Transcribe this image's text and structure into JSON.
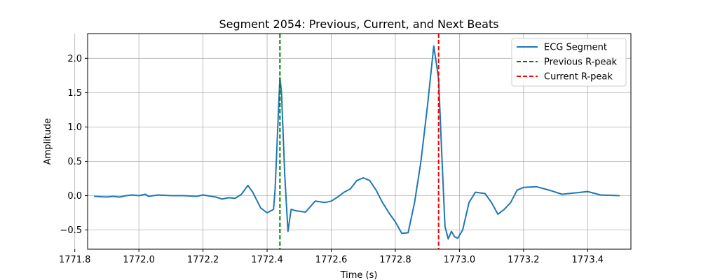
{
  "chart_data": {
    "type": "line",
    "title": "Segment 2054: Previous, Current, and Next Beats",
    "xlabel": "Time (s)",
    "ylabel": "Amplitude",
    "xlim": [
      1771.84,
      1773.535
    ],
    "ylim": [
      -0.78,
      2.36
    ],
    "xticks": [
      1771.8,
      1772.0,
      1772.2,
      1772.4,
      1772.6,
      1772.8,
      1773.0,
      1773.2,
      1773.4
    ],
    "xtick_labels": [
      "1771.8",
      "1772.0",
      "1772.2",
      "1772.4",
      "1772.6",
      "1772.8",
      "1773.0",
      "1773.2",
      "1773.4"
    ],
    "yticks": [
      -0.5,
      0.0,
      0.5,
      1.0,
      1.5,
      2.0
    ],
    "ytick_labels": [
      "−0.5",
      "0.0",
      "0.5",
      "1.0",
      "1.5",
      "2.0"
    ],
    "grid": true,
    "legend_position": "top-right",
    "series": [
      {
        "name": "ECG Segment",
        "color": "#1f77b4",
        "style": "solid",
        "x": [
          1771.86,
          1771.9,
          1771.92,
          1771.94,
          1771.96,
          1771.98,
          1772.0,
          1772.02,
          1772.03,
          1772.06,
          1772.1,
          1772.14,
          1772.18,
          1772.2,
          1772.24,
          1772.26,
          1772.28,
          1772.3,
          1772.32,
          1772.34,
          1772.355,
          1772.38,
          1772.4,
          1772.42,
          1772.425,
          1772.435,
          1772.44,
          1772.445,
          1772.455,
          1772.465,
          1772.475,
          1772.49,
          1772.52,
          1772.55,
          1772.58,
          1772.6,
          1772.62,
          1772.64,
          1772.66,
          1772.68,
          1772.7,
          1772.72,
          1772.74,
          1772.76,
          1772.78,
          1772.8,
          1772.82,
          1772.84,
          1772.86,
          1772.88,
          1772.9,
          1772.92,
          1772.935,
          1772.945,
          1772.955,
          1772.965,
          1772.975,
          1772.985,
          1772.995,
          1773.01,
          1773.03,
          1773.05,
          1773.08,
          1773.1,
          1773.12,
          1773.14,
          1773.16,
          1773.18,
          1773.2,
          1773.24,
          1773.28,
          1773.32,
          1773.36,
          1773.4,
          1773.44,
          1773.5
        ],
        "y": [
          -0.01,
          -0.02,
          -0.01,
          -0.02,
          0.0,
          0.01,
          0.0,
          0.02,
          -0.01,
          0.01,
          0.0,
          0.0,
          -0.01,
          0.01,
          -0.02,
          -0.05,
          -0.03,
          -0.04,
          0.02,
          0.15,
          0.05,
          -0.18,
          -0.25,
          -0.2,
          0.1,
          1.2,
          1.72,
          1.5,
          0.3,
          -0.52,
          -0.2,
          -0.22,
          -0.24,
          -0.08,
          -0.1,
          -0.08,
          -0.02,
          0.05,
          0.1,
          0.22,
          0.26,
          0.22,
          0.08,
          -0.1,
          -0.25,
          -0.38,
          -0.55,
          -0.54,
          -0.1,
          0.5,
          1.3,
          2.18,
          1.7,
          0.6,
          -0.45,
          -0.63,
          -0.52,
          -0.6,
          -0.62,
          -0.5,
          -0.1,
          0.05,
          0.03,
          -0.1,
          -0.27,
          -0.2,
          -0.1,
          0.08,
          0.12,
          0.13,
          0.08,
          0.02,
          0.04,
          0.06,
          0.01,
          0.0
        ]
      },
      {
        "name": "Previous R-peak",
        "color": "#008000",
        "style": "dashed",
        "x_value": 1772.44
      },
      {
        "name": "Current R-peak",
        "color": "#ff0000",
        "style": "dashed",
        "x_value": 1772.935
      }
    ]
  }
}
